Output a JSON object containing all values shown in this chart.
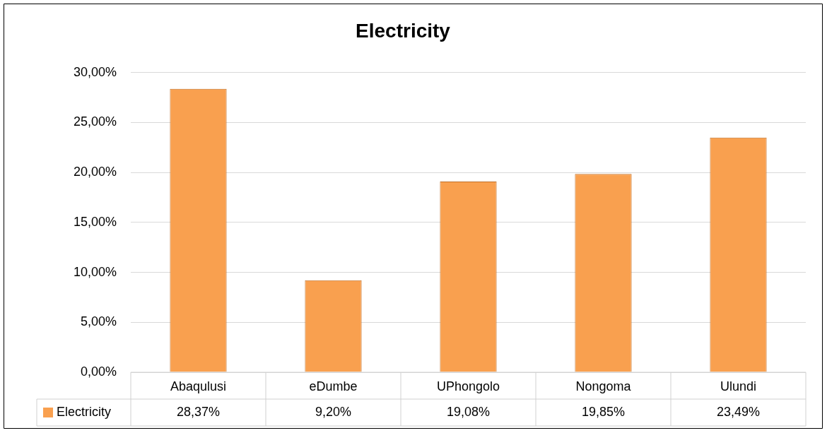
{
  "chart_data": {
    "type": "bar",
    "title": "Electricity",
    "categories": [
      "Abaqulusi",
      "eDumbe",
      "UPhongolo",
      "Nongoma",
      "Ulundi"
    ],
    "series": [
      {
        "name": "Electricity",
        "color": "#f9a04f",
        "values": [
          28.37,
          9.2,
          19.08,
          19.85,
          23.49
        ],
        "value_labels": [
          "28,37%",
          "9,20%",
          "19,08%",
          "19,85%",
          "23,49%"
        ]
      }
    ],
    "ylim": [
      0,
      30
    ],
    "yticks": [
      {
        "value": 0,
        "label": "0,00%"
      },
      {
        "value": 5,
        "label": "5,00%"
      },
      {
        "value": 10,
        "label": "10,00%"
      },
      {
        "value": 15,
        "label": "15,00%"
      },
      {
        "value": 20,
        "label": "20,00%"
      },
      {
        "value": 25,
        "label": "25,00%"
      },
      {
        "value": 30,
        "label": "30,00%"
      }
    ],
    "grid": "y",
    "legend": "bottom"
  }
}
